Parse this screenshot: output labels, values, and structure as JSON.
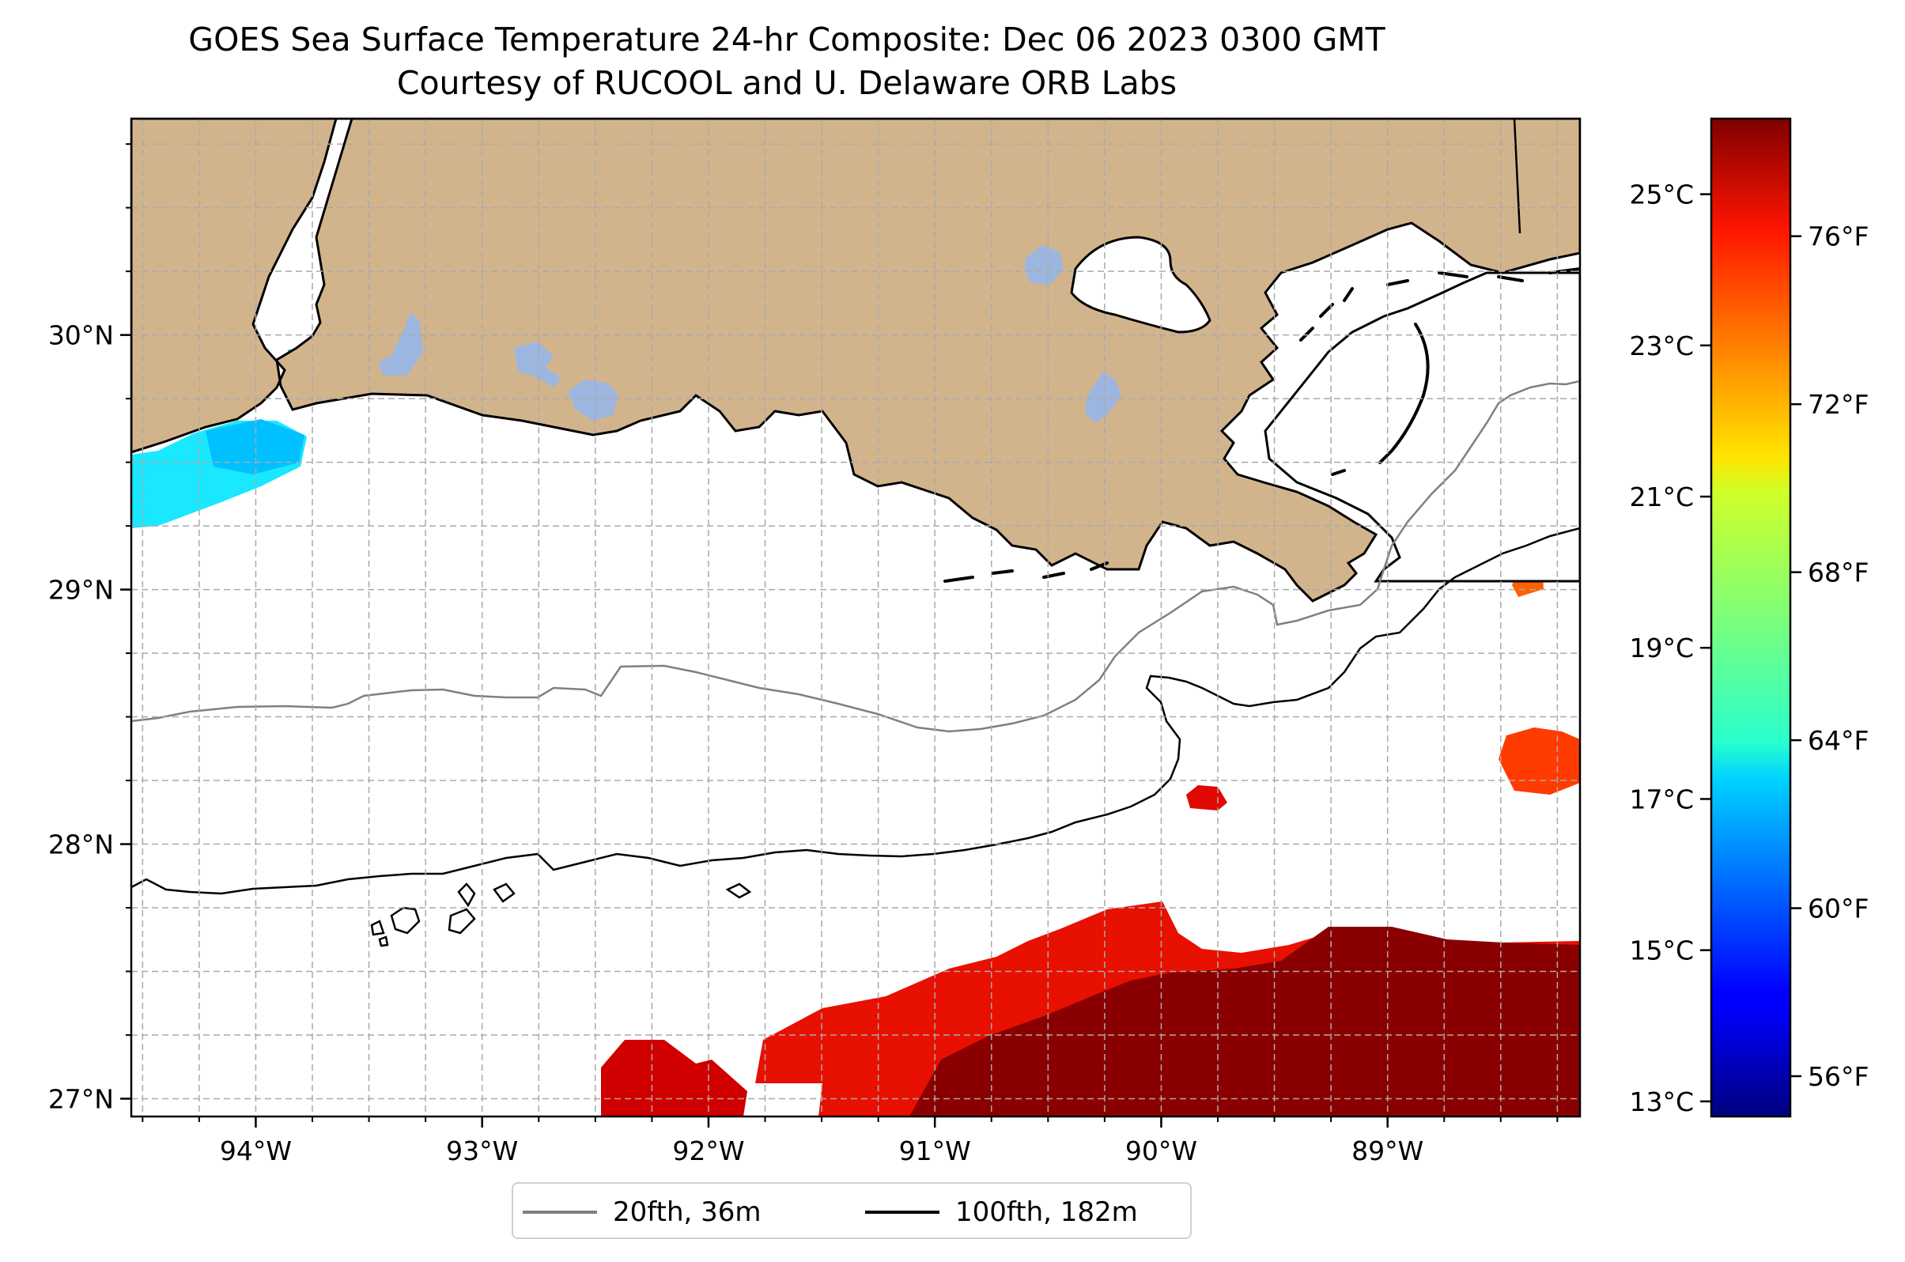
{
  "title": "GOES Sea Surface Temperature 24-hr Composite: Dec 06 2023 0300 GMT",
  "subtitle": "Courtesy of RUCOOL and U. Delaware ORB Labs",
  "map": {
    "lon_range": [
      -94.55,
      -88.15
    ],
    "lat_range": [
      26.93,
      30.85
    ],
    "lon_ticks": [
      {
        "value": -94,
        "label": "94°W"
      },
      {
        "value": -93,
        "label": "93°W"
      },
      {
        "value": -92,
        "label": "92°W"
      },
      {
        "value": -91,
        "label": "91°W"
      },
      {
        "value": -90,
        "label": "90°W"
      },
      {
        "value": -89,
        "label": "89°W"
      }
    ],
    "lat_ticks": [
      {
        "value": 30,
        "label": "30°N"
      },
      {
        "value": 29,
        "label": "29°N"
      },
      {
        "value": 28,
        "label": "28°N"
      },
      {
        "value": 27,
        "label": "27°N"
      }
    ],
    "grid": true,
    "colors": {
      "land": "#d2b48c",
      "lakes": "#9cb6e0",
      "ocean": "#ffffff",
      "isobath_20": "#808080",
      "isobath_100": "#000000"
    }
  },
  "colorbar": {
    "colormap": "jet",
    "range_c": [
      12.8,
      26.0
    ],
    "celsius_ticks": [
      {
        "value": 13,
        "label": "13°C"
      },
      {
        "value": 15,
        "label": "15°C"
      },
      {
        "value": 17,
        "label": "17°C"
      },
      {
        "value": 19,
        "label": "19°C"
      },
      {
        "value": 21,
        "label": "21°C"
      },
      {
        "value": 23,
        "label": "23°C"
      },
      {
        "value": 25,
        "label": "25°C"
      }
    ],
    "fahrenheit_ticks": [
      {
        "value": 56,
        "label": "56°F"
      },
      {
        "value": 60,
        "label": "60°F"
      },
      {
        "value": 64,
        "label": "64°F"
      },
      {
        "value": 68,
        "label": "68°F"
      },
      {
        "value": 72,
        "label": "72°F"
      },
      {
        "value": 76,
        "label": "76°F"
      }
    ]
  },
  "legend": {
    "location": "below-map",
    "items": [
      {
        "label": "20fth, 36m",
        "color": "#808080"
      },
      {
        "label": "100fth, 182m",
        "color": "#000000"
      }
    ]
  }
}
